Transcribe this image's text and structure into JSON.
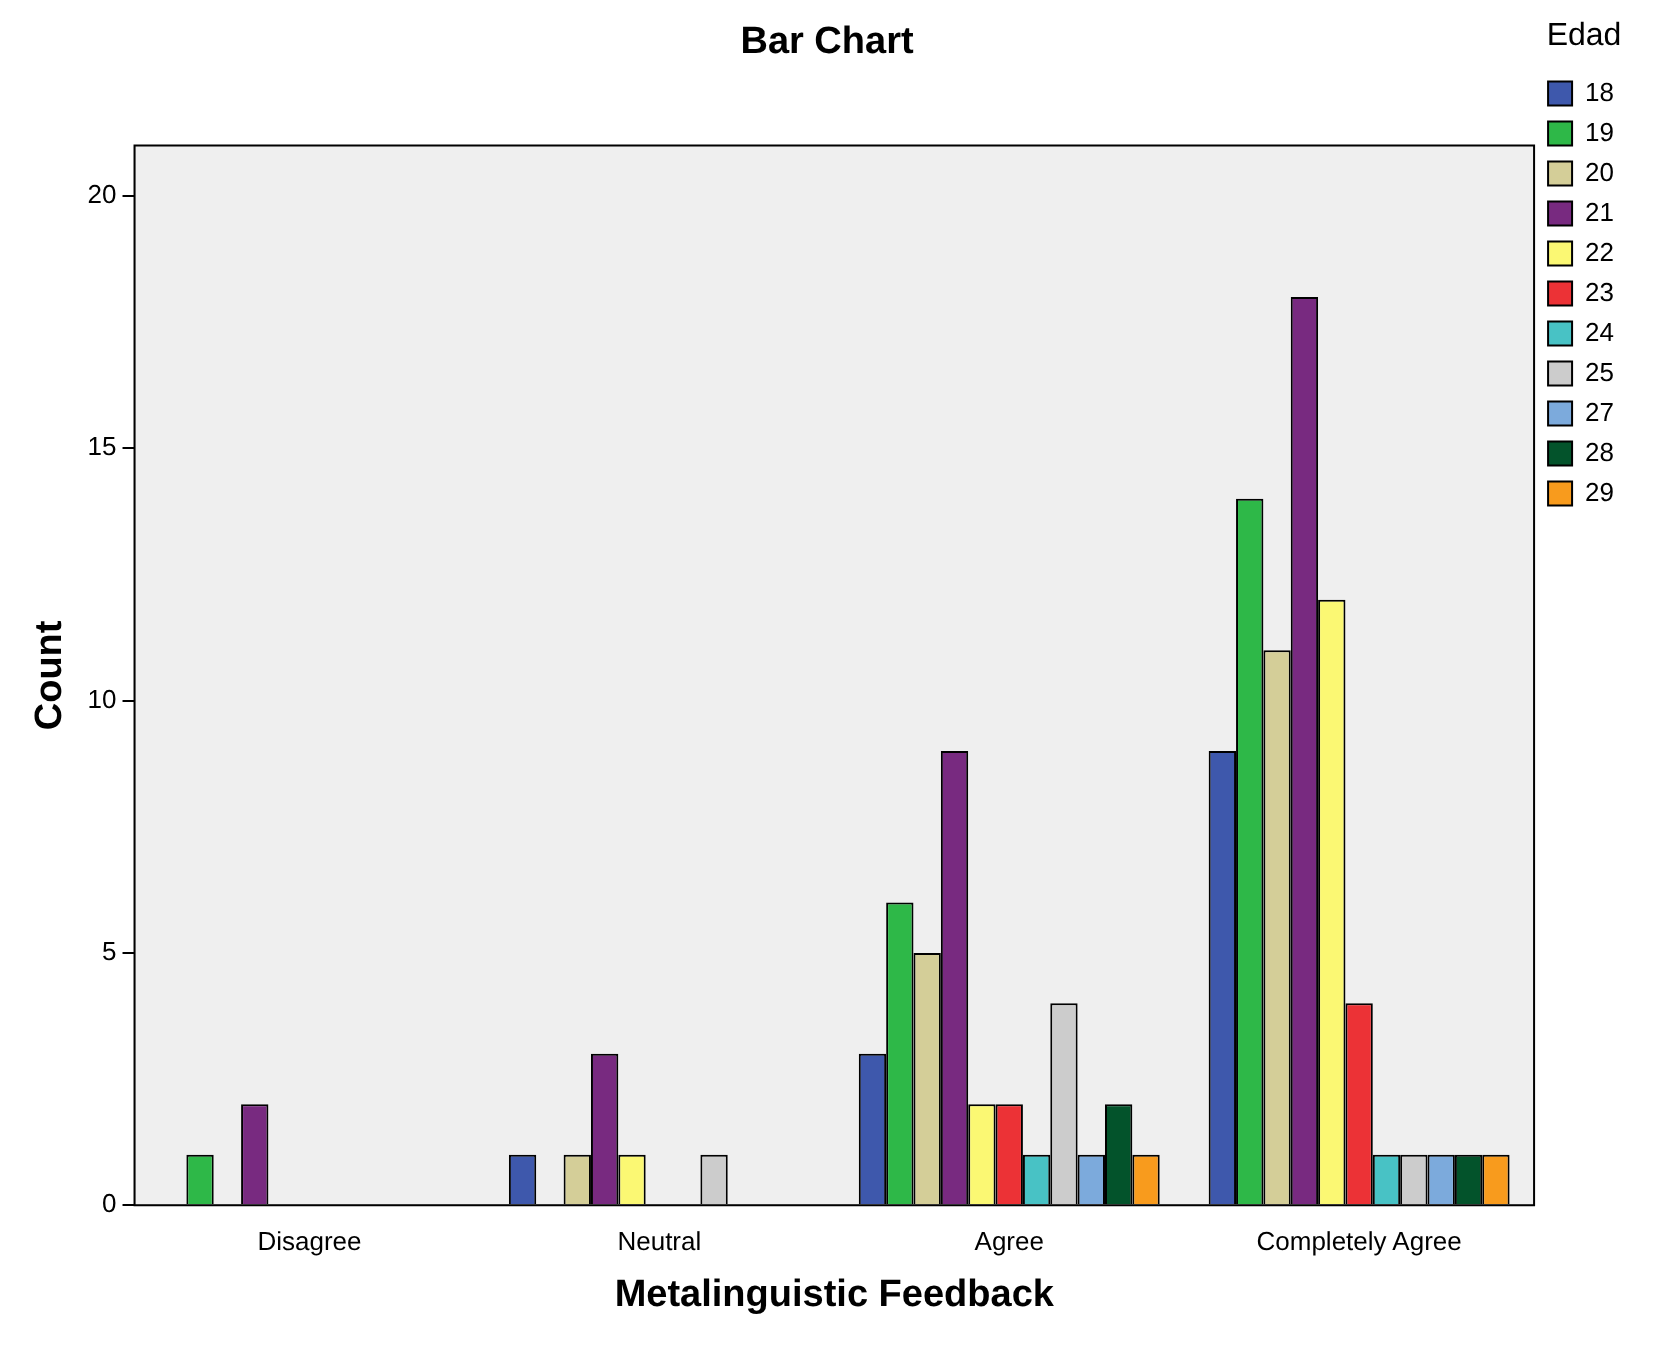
{
  "chart_data": {
    "type": "bar",
    "title": "Bar Chart",
    "xlabel": "Metalinguistic Feedback",
    "ylabel": "Count",
    "legend_title": "Edad",
    "categories": [
      "Disagree",
      "Neutral",
      "Agree",
      "Completely Agree"
    ],
    "series": [
      {
        "name": "18",
        "color": "#3e58ac",
        "values": [
          null,
          1,
          3,
          9
        ]
      },
      {
        "name": "19",
        "color": "#2eb848",
        "values": [
          1,
          null,
          6,
          14
        ]
      },
      {
        "name": "20",
        "color": "#d4ce98",
        "values": [
          null,
          1,
          5,
          11
        ]
      },
      {
        "name": "21",
        "color": "#782a80",
        "values": [
          2,
          3,
          9,
          18
        ]
      },
      {
        "name": "22",
        "color": "#fbf873",
        "values": [
          null,
          1,
          2,
          12
        ]
      },
      {
        "name": "23",
        "color": "#ec3236",
        "values": [
          null,
          null,
          2,
          4
        ]
      },
      {
        "name": "24",
        "color": "#48c2c5",
        "values": [
          null,
          null,
          1,
          1
        ]
      },
      {
        "name": "25",
        "color": "#cccccc",
        "values": [
          null,
          1,
          4,
          1
        ]
      },
      {
        "name": "27",
        "color": "#7caadc",
        "values": [
          null,
          null,
          1,
          1
        ]
      },
      {
        "name": "28",
        "color": "#03532b",
        "values": [
          null,
          null,
          2,
          1
        ]
      },
      {
        "name": "29",
        "color": "#f89b1d",
        "values": [
          null,
          null,
          1,
          1
        ]
      }
    ],
    "ylim": [
      0,
      21
    ],
    "yticks": [
      0,
      5,
      10,
      15,
      20
    ],
    "grid": false,
    "legend": "right"
  }
}
